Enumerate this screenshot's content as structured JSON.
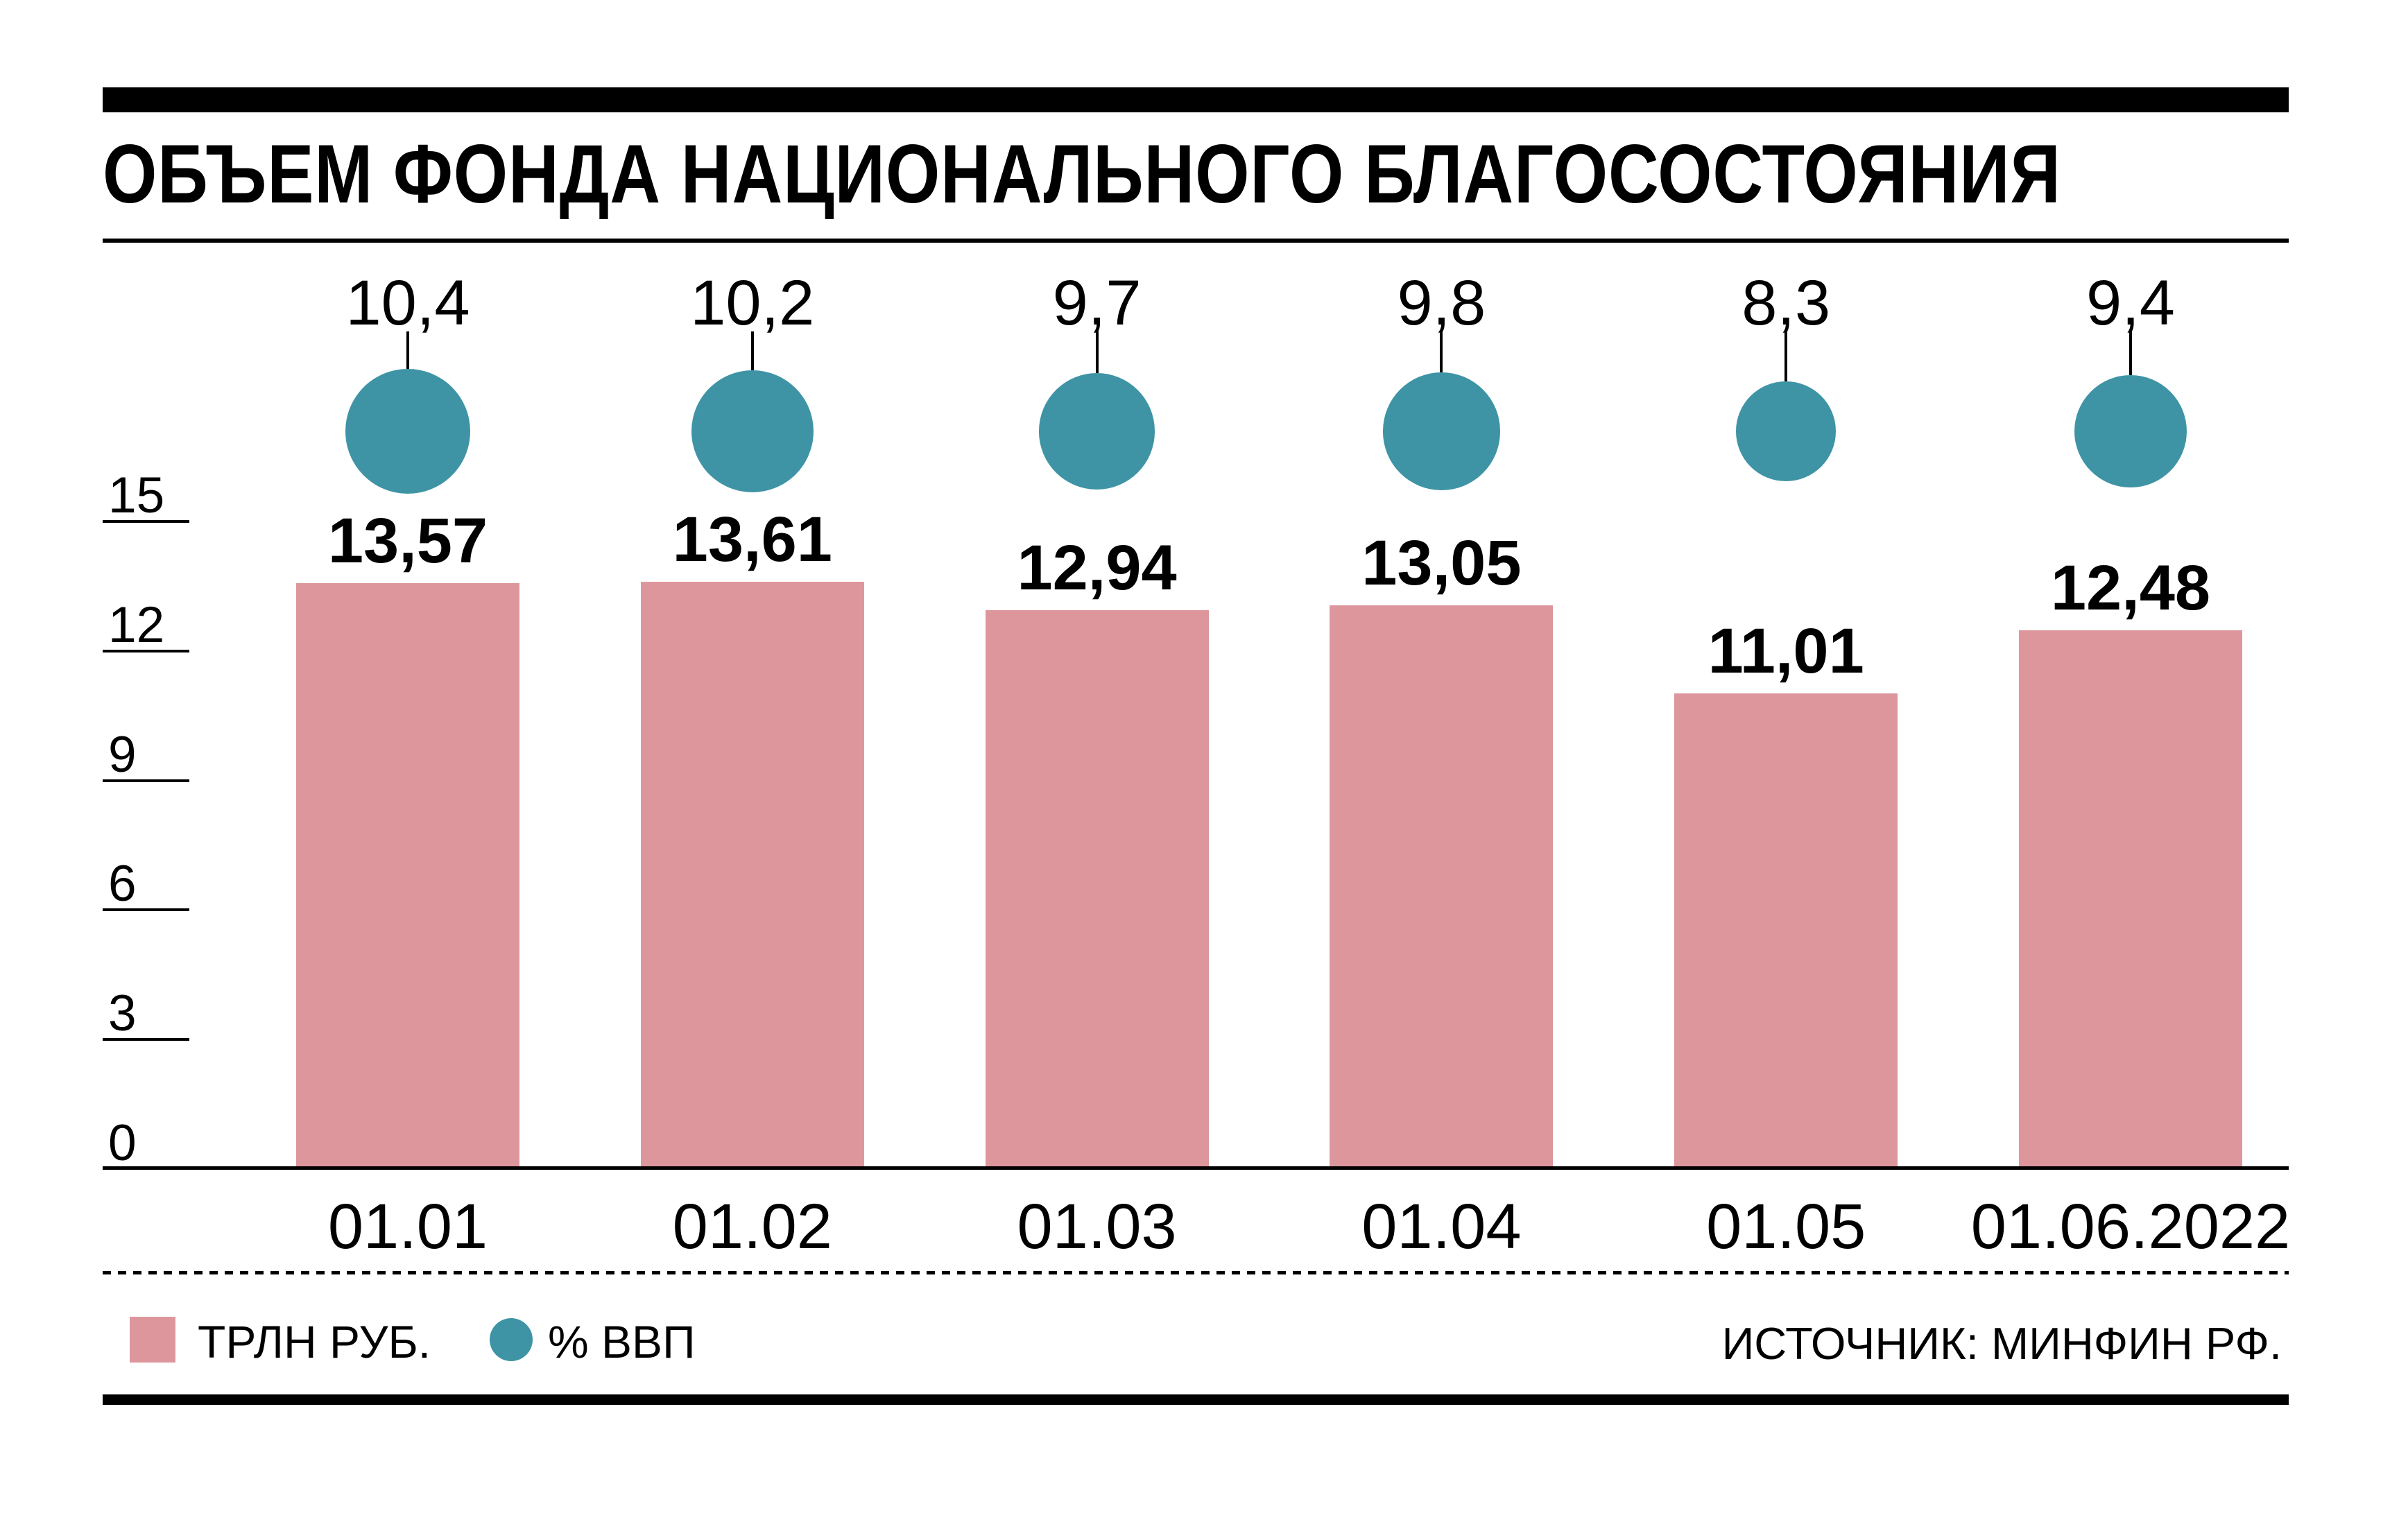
{
  "header": {
    "title": "ОБЪЕМ ФОНДА НАЦИОНАЛЬНОГО БЛАГОСОСТОЯНИЯ"
  },
  "legend": {
    "bars_label": "ТРЛН РУБ.",
    "circles_label": "% ВВП"
  },
  "source": "ИСТОЧНИК: МИНФИН РФ.",
  "colors": {
    "bar": "#de969d",
    "circle": "#3e94a5",
    "text": "#000000"
  },
  "chart_data": {
    "type": "bar",
    "title": "ОБЪЕМ ФОНДА НАЦИОНАЛЬНОГО БЛАГОСОСТОЯНИЯ",
    "categories": [
      "01.01",
      "01.02",
      "01.03",
      "01.04",
      "01.05",
      "01.06.2022"
    ],
    "series": [
      {
        "name": "ТРЛН РУБ.",
        "kind": "bar",
        "values": [
          13.57,
          13.61,
          12.94,
          13.05,
          11.01,
          12.48
        ],
        "labels": [
          "13,57",
          "13,61",
          "12,94",
          "13,05",
          "11,01",
          "12,48"
        ],
        "color": "#de969d"
      },
      {
        "name": "% ВВП",
        "kind": "sized-circle",
        "values": [
          10.4,
          10.2,
          9.7,
          9.8,
          8.3,
          9.4
        ],
        "labels": [
          "10,4",
          "10,2",
          "9,7",
          "9,8",
          "8,3",
          "9,4"
        ],
        "color": "#3e94a5"
      }
    ],
    "yticks": [
      15,
      12,
      9,
      6,
      3,
      0
    ],
    "ylim": [
      0,
      15
    ],
    "grid": false,
    "legend_position": "bottom-left",
    "source": "ИСТОЧНИК: МИНФИН РФ."
  }
}
